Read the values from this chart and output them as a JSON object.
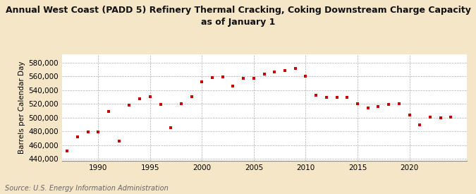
{
  "title": "Annual West Coast (PADD 5) Refinery Thermal Cracking, Coking Downstream Charge Capacity\nas of January 1",
  "ylabel": "Barrels per Calendar Day",
  "source": "Source: U.S. Energy Information Administration",
  "background_color": "#f5e6c8",
  "plot_bg_color": "#ffffff",
  "marker_color": "#cc0000",
  "ylim": [
    437000,
    592000
  ],
  "yticks": [
    440000,
    460000,
    480000,
    500000,
    520000,
    540000,
    560000,
    580000
  ],
  "xlim": [
    1986.5,
    2025.5
  ],
  "xticks": [
    1990,
    1995,
    2000,
    2005,
    2010,
    2015,
    2020
  ],
  "years": [
    1987,
    1988,
    1989,
    1990,
    1991,
    1992,
    1993,
    1994,
    1995,
    1996,
    1997,
    1998,
    1999,
    2000,
    2001,
    2002,
    2003,
    2004,
    2005,
    2006,
    2007,
    2008,
    2009,
    2010,
    2011,
    2012,
    2013,
    2014,
    2015,
    2016,
    2017,
    2018,
    2019,
    2020,
    2021,
    2022,
    2023,
    2024
  ],
  "values": [
    452000,
    472000,
    479000,
    479000,
    509000,
    466000,
    518000,
    527000,
    531000,
    519000,
    485000,
    520000,
    531000,
    552000,
    558000,
    559000,
    546000,
    557000,
    557000,
    563000,
    566000,
    568000,
    572000,
    560000,
    533000,
    530000,
    529000,
    529000,
    520000,
    514000,
    516000,
    519000,
    520000,
    504000,
    490000,
    501000,
    500000,
    501000
  ],
  "title_fontsize": 9.0,
  "ylabel_fontsize": 7.5,
  "tick_fontsize": 7.5,
  "source_fontsize": 7.0
}
